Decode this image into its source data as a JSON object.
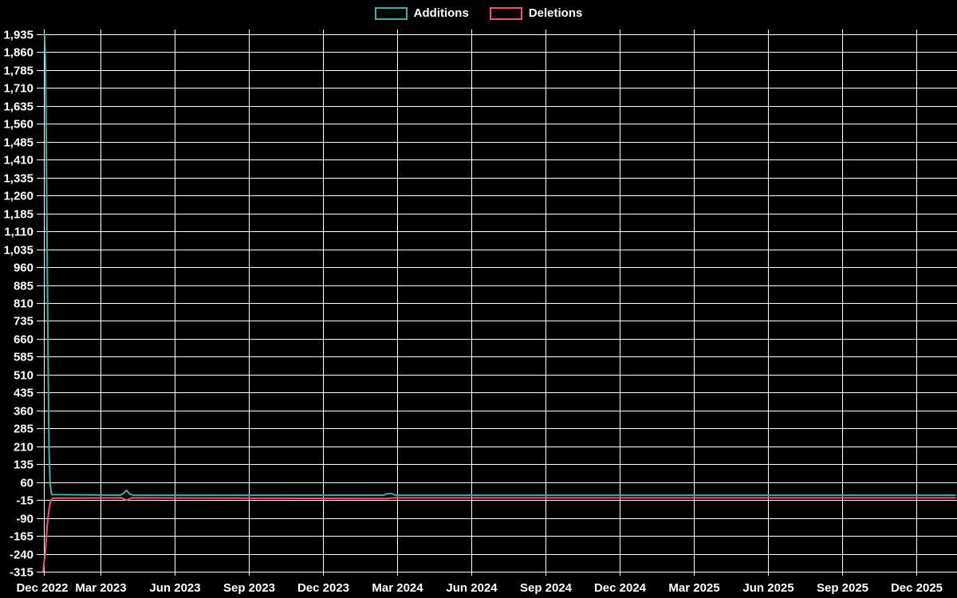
{
  "page": {
    "background_color": "#000000",
    "text_color": "#ffffff",
    "gridline_color": "#ffffff"
  },
  "legend": {
    "items": [
      {
        "label": "Additions",
        "color": "#3dafa9"
      },
      {
        "label": "Deletions",
        "color": "#f0566f"
      }
    ]
  },
  "chart_data": {
    "type": "line",
    "title": "",
    "xlabel": "",
    "ylabel": "",
    "grid": true,
    "legend_position": "top-center",
    "x_unit": "months since Dec 2022",
    "x_tick_labels": [
      "Dec 2022",
      "Mar 2023",
      "Jun 2023",
      "Sep 2023",
      "Dec 2023",
      "Mar 2024",
      "Jun 2024",
      "Sep 2024",
      "Dec 2024",
      "Mar 2025",
      "Jun 2025",
      "Sep 2025",
      "Dec 2025"
    ],
    "x_tick_months": [
      0,
      3,
      6,
      9,
      12,
      15,
      18,
      21,
      24,
      27,
      30,
      33,
      36
    ],
    "y_axis": {
      "min": -315,
      "max": 1935,
      "step": 75
    },
    "x_axis": {
      "data_start": 0.68,
      "data_end": 37.6
    },
    "series": [
      {
        "name": "Deletions",
        "color": "#f0566f",
        "points": [
          [
            0.68,
            -315
          ],
          [
            0.72,
            -275
          ],
          [
            0.76,
            -240
          ],
          [
            0.8,
            -190
          ],
          [
            0.84,
            -130
          ],
          [
            0.88,
            -85
          ],
          [
            0.92,
            -55
          ],
          [
            0.96,
            -30
          ],
          [
            1.0,
            -16
          ],
          [
            1.08,
            -7
          ],
          [
            3.85,
            -6
          ],
          [
            4.05,
            -16
          ],
          [
            4.25,
            -6
          ],
          [
            14.6,
            -9
          ],
          [
            14.8,
            -6
          ],
          [
            37.6,
            -6
          ]
        ]
      },
      {
        "name": "Additions",
        "color": "#3dafa9",
        "points": [
          [
            0.71,
            1935
          ],
          [
            0.74,
            1935
          ],
          [
            0.77,
            1830
          ],
          [
            0.8,
            1560
          ],
          [
            0.83,
            1190
          ],
          [
            0.86,
            810
          ],
          [
            0.89,
            470
          ],
          [
            0.92,
            190
          ],
          [
            0.96,
            60
          ],
          [
            1.02,
            8
          ],
          [
            3.8,
            5
          ],
          [
            3.95,
            14
          ],
          [
            4.05,
            26
          ],
          [
            4.18,
            10
          ],
          [
            4.32,
            5
          ],
          [
            14.45,
            5
          ],
          [
            14.6,
            11
          ],
          [
            14.78,
            12
          ],
          [
            14.92,
            5
          ],
          [
            37.6,
            5
          ]
        ]
      }
    ]
  }
}
